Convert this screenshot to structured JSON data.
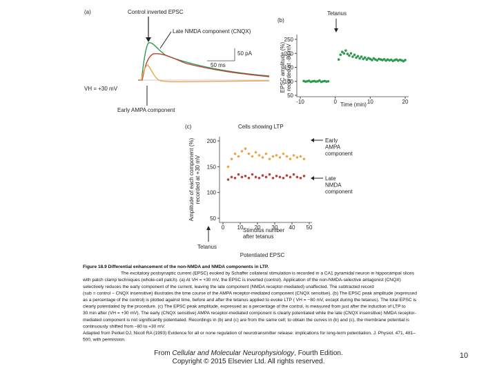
{
  "figure": {
    "panel_a": {
      "label": "(a)",
      "trace_label": "Control inverted EPSC",
      "late_label": "Late NMDA component (CNQX)",
      "scale_current": "50 pA",
      "scale_time": "50 ms",
      "holding": "VH = +30 mV",
      "early_label": "Early AMPA component"
    },
    "panel_b": {
      "type": "scatter",
      "label": "(b)",
      "annotation": "Tetanus",
      "x_label": "Time (min)",
      "y_label": [
        "EPSC amplitude (%)",
        "recorded at -80 mV"
      ],
      "xlim": [
        -10,
        20
      ],
      "xticks": [
        -10,
        0,
        10,
        20
      ],
      "ylim": [
        50,
        250
      ],
      "yticks": [
        50,
        100,
        150,
        200,
        250
      ],
      "series": [
        {
          "color": "#2e9a4e",
          "x": [
            -9,
            -8.5,
            -8,
            -7.5,
            -7,
            -6.5,
            -6,
            -5.5,
            -5,
            -4.5,
            -4,
            -3.5,
            -3,
            -2.5,
            -2,
            1,
            1.5,
            2,
            2.5,
            3,
            3.5,
            4,
            4.5,
            5,
            5.5,
            6,
            6.5,
            7,
            7.5,
            8,
            8.5,
            9,
            9.5,
            10,
            10.5,
            11,
            11.5,
            12,
            12.5,
            13,
            13.5,
            14,
            14.5,
            15,
            15.5,
            16,
            16.5,
            17,
            17.5,
            18,
            18.5,
            19,
            19.5,
            20
          ],
          "values": [
            101,
            99,
            100,
            102,
            98,
            100,
            101,
            99,
            100,
            103,
            98,
            100,
            101,
            99,
            100,
            178,
            195,
            205,
            200,
            210,
            198,
            192,
            200,
            188,
            195,
            185,
            190,
            182,
            188,
            180,
            185,
            178,
            183,
            180,
            176,
            182,
            178,
            175,
            180,
            178,
            176,
            179,
            174,
            178,
            175,
            177,
            173,
            176,
            178,
            174,
            177,
            175,
            172,
            176
          ]
        }
      ]
    },
    "panel_c": {
      "type": "scatter",
      "label": "(c)",
      "title": "Cells showing LTP",
      "annotation": "Tetanus",
      "caption": "Potentiated EPSC",
      "x_label": [
        "Stimulus number",
        "after tetanus"
      ],
      "y_label": [
        "Amplitude of each component (%)",
        "recorded at +30 mV"
      ],
      "xlim": [
        0,
        50
      ],
      "xticks": [
        0,
        10,
        20,
        30,
        40,
        50
      ],
      "ylim": [
        50,
        200
      ],
      "yticks": [
        50,
        100,
        150,
        200
      ],
      "series": [
        {
          "name": [
            "Early",
            "AMPA",
            "component"
          ],
          "color": "#eea44c",
          "x": [
            3,
            5,
            7,
            9,
            11,
            13,
            15,
            17,
            19,
            21,
            23,
            25,
            27,
            29,
            31,
            33,
            35,
            37,
            39,
            41,
            43,
            45,
            47
          ],
          "values": [
            150,
            165,
            175,
            170,
            180,
            185,
            175,
            170,
            178,
            172,
            168,
            175,
            165,
            170,
            172,
            168,
            175,
            170,
            165,
            172,
            168,
            170,
            165
          ]
        },
        {
          "name": [
            "Late",
            "NMDA",
            "component"
          ],
          "color": "#b8433b",
          "x": [
            3,
            5,
            7,
            9,
            11,
            13,
            15,
            17,
            19,
            21,
            23,
            25,
            27,
            29,
            31,
            33,
            35,
            37,
            39,
            41,
            43,
            45,
            47
          ],
          "values": [
            125,
            130,
            128,
            135,
            130,
            132,
            128,
            135,
            130,
            128,
            133,
            130,
            135,
            128,
            132,
            130,
            128,
            133,
            130,
            135,
            130,
            128,
            132
          ]
        }
      ]
    }
  },
  "caption": [
    "Figure 18.9 Differential enhancement of the non-NMDA and NMDA components in LTP.",
    "The excitatory postsynaptic current (EPSC) evoked by Schaffer collateral stimulation is recorded in a CA1 pyramidal neuron in hippocampal slices",
    "with patch clamp techniques (whole-cell patch). (a) At VH = +30 mV, the EPSC is inverted (control). Application of the non-NMDA-selective antagonist (CNQX)",
    "selectively reduces the early component of the current, leaving the late component (NMDA receptor-mediated) unaffected. The subtracted record",
    "(sub = control − CNQX insensitive) illustrates the time course of the AMPA receptor-mediated component (CNQX sensitive). (b) The EPSC peak amplitude (expressed",
    "as a percentage of the control) is plotted against time, before and after the tetanus applied to evoke LTP ( VH = −80 mV, except during the tetanus). The total EPSC is",
    "clearly potentiated by the procedure. (c) The EPSC peak amplitude, expressed as a percentage of the control, is measured from just after the induction of LTP to",
    "30 min after (VH = +30 mV). The early (CNQX sensitive) AMPA receptor-mediated component is clearly potentiated while the late (CNQX insensitive) NMDA receptor-",
    "mediated component is not significantly potentiated. Recordings in (b) and (c) are from the same cell; to obtain the curves in (b) and (c), the membrane potential is",
    "continuously shifted from −80 to +30 mV.",
    "Adapted from Perkel DJ, Nicoll RA (1993) Evidence for all or none regulation of neurotransmitter release: implications for long-term potentiation.  J. Physiol. 471, 481–",
    "500, with permission."
  ],
  "footer": {
    "prefix": "From ",
    "book": "Cellular and Molecular Neurophysiology",
    "suffix": ", Fourth Edition.",
    "copyright": "Copyright © 2015 Elsevier Ltd. All rights reserved."
  },
  "page_number": "10"
}
